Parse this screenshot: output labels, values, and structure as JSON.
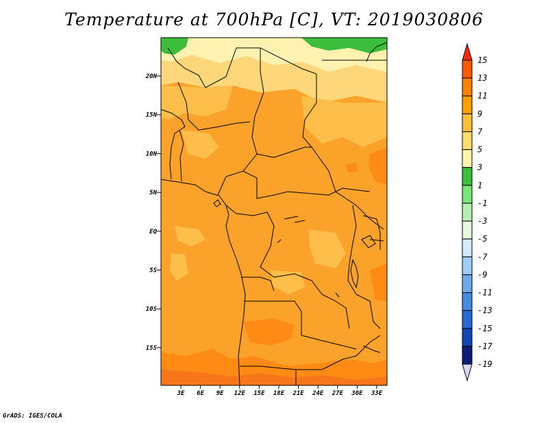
{
  "title": "Temperature at 700hPa [C], VT: 2019030806",
  "credit": "GrADS: IGES/COLA",
  "lat_ticks": [
    "20N",
    "15N",
    "10N",
    "5N",
    "EQ",
    "5S",
    "10S",
    "15S"
  ],
  "lon_ticks": [
    "3E",
    "6E",
    "9E",
    "12E",
    "15E",
    "18E",
    "21E",
    "24E",
    "27E",
    "30E",
    "33E"
  ],
  "colorbar": {
    "labels": [
      "15",
      "13",
      "11",
      "9",
      "7",
      "5",
      "3",
      "1",
      "-1",
      "-3",
      "-5",
      "-7",
      "-9",
      "-11",
      "-13",
      "-15",
      "-17",
      "-19"
    ],
    "colors": [
      "#ff2a0a",
      "#ff5a00",
      "#ff8200",
      "#ffa000",
      "#ffbe3c",
      "#ffdc6e",
      "#fff5aa",
      "#3cbe3c",
      "#78e678",
      "#b4f0b4",
      "#e6fadc",
      "#d2ebff",
      "#a0cdf5",
      "#6eaaeb",
      "#468ce1",
      "#2869d2",
      "#1446b4",
      "#0a1e78",
      "#000050",
      "#e6e6ff"
    ],
    "extend_top_color": "#ff2a0a",
    "extend_bottom_color": "#d8d8f8"
  },
  "map_colors": {
    "base": "#fba22a",
    "warm": "#ff8a14",
    "light": "#fdbf4a",
    "pale": "#fdd77a",
    "cream": "#fff2b0",
    "green": "#3cbe3c",
    "hot": "#f8761a"
  }
}
